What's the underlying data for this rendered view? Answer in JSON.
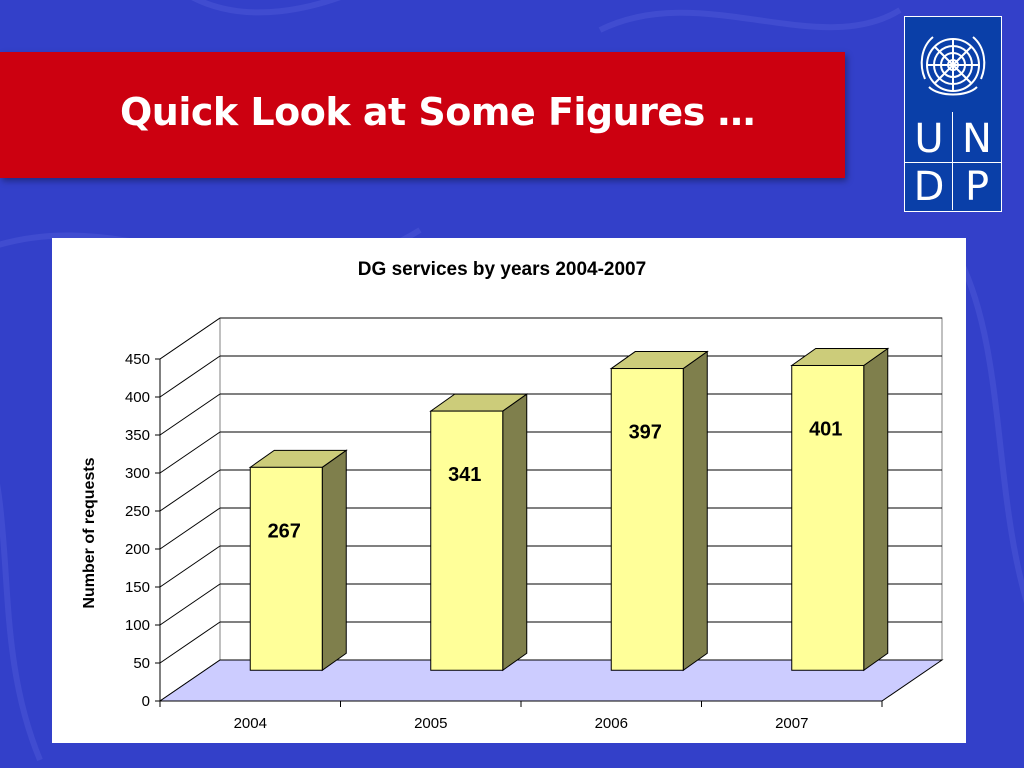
{
  "slide": {
    "title": "Quick Look at Some Figures …"
  },
  "logo": {
    "letters": [
      "U",
      "N",
      "D",
      "P"
    ],
    "emblem": "un-emblem-icon",
    "background": "#0a3fa8"
  },
  "colors": {
    "background": "#3340c9",
    "title_band": "#cc0010",
    "bar_front": "#ffff99",
    "bar_side": "#7f7f4c",
    "floor": "#ccccff"
  },
  "chart_data": {
    "type": "bar",
    "title": "DG services by years 2004-2007",
    "xlabel": "",
    "ylabel": "Number of requests",
    "categories": [
      "2004",
      "2005",
      "2006",
      "2007"
    ],
    "values": [
      267,
      341,
      397,
      401
    ],
    "data_labels": [
      "267",
      "341",
      "397",
      "401"
    ],
    "ylim": [
      0,
      450
    ],
    "yticks": [
      0,
      50,
      100,
      150,
      200,
      250,
      300,
      350,
      400,
      450
    ],
    "grid": true,
    "style": "3d-column"
  }
}
